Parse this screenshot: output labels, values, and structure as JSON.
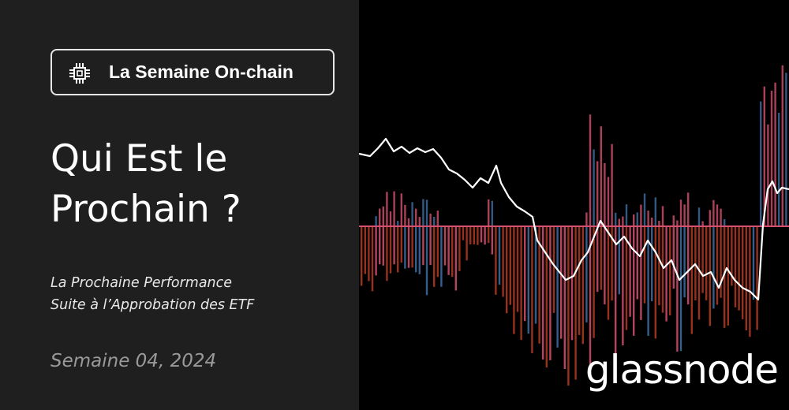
{
  "badge": {
    "label": "La Semaine On-chain",
    "icon": "chip-icon"
  },
  "headline": {
    "line1": "Qui Est le",
    "line2": "Prochain ?"
  },
  "subtitle": {
    "line1": "La Prochaine Performance",
    "line2": "Suite à l’Approbation des ETF"
  },
  "date": "Semaine 04, 2024",
  "brand": "glassnode",
  "colors": {
    "left_background": "#1f1f1f",
    "chart_background": "#000000",
    "bar_red": "#b33a22",
    "bar_pink": "#d6506f",
    "bar_blue": "#3f6fa3",
    "line": "#ffffff"
  }
}
